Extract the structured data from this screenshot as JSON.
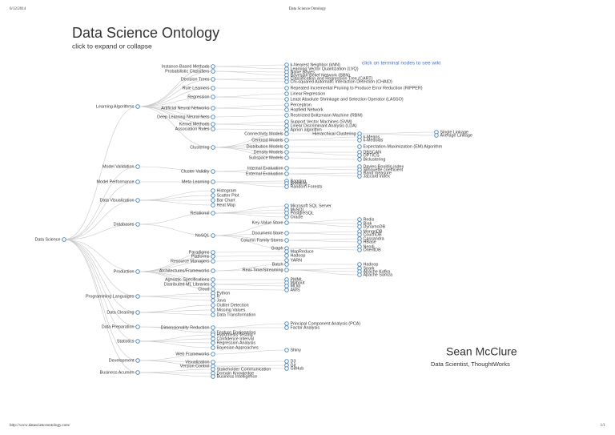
{
  "header": {
    "date": "6/12/2014",
    "title": "Data Science Ontology"
  },
  "title": "Data Science Ontology",
  "subtitle": "click to expand or collapse",
  "hint": "click on terminal nodes to see wiki",
  "author": {
    "name": "Sean McClure",
    "role": "Data Scientist, ThoughtWorks"
  },
  "footer": {
    "url": "http://www.datascienceontology.com/",
    "page": "1/1"
  },
  "tree": {
    "label": "Data Science",
    "children": [
      {
        "label": "Learning Algorithms",
        "children": [
          {
            "label": "Instance-Based Methods",
            "children": [
              {
                "label": "k-Nearest Neighbor (kNN)"
              },
              {
                "label": "Learning Vector Quantization (LVQ)"
              }
            ]
          },
          {
            "label": "Probabilistic Classifiers",
            "children": [
              {
                "label": "Naive Bayes"
              },
              {
                "label": "Bayesian Belief Network (BBN)"
              }
            ]
          },
          {
            "label": "Decision Trees",
            "children": [
              {
                "label": "Classification and Regression Tree (CART)"
              },
              {
                "label": "Chi-squared Automatic Interaction Detection (CHAID)"
              }
            ]
          },
          {
            "label": "Rule Learners",
            "children": [
              {
                "label": "Repeated Incremental Pruning to Produce Error Reduction (RIPPER)"
              }
            ]
          },
          {
            "label": "Regression",
            "children": [
              {
                "label": "Linear Regression"
              },
              {
                "label": "Least Absolute Shrinkage and Selection Operator (LASSO)"
              }
            ]
          },
          {
            "label": "Artificial Neural Networks",
            "children": [
              {
                "label": "Perceptron"
              },
              {
                "label": "Hopfield Network"
              }
            ]
          },
          {
            "label": "Deep Learning Neural Nets",
            "children": [
              {
                "label": "Restricted Boltzmann Machine (RBM)"
              }
            ]
          },
          {
            "label": "Kernel Methods",
            "children": [
              {
                "label": "Support Vector Machines (SVM)"
              },
              {
                "label": "Linear Discriminant Analysis (LDA)"
              }
            ]
          },
          {
            "label": "Association Rules",
            "children": [
              {
                "label": "Apriori algorithm"
              }
            ]
          },
          {
            "label": "Clustering",
            "children": [
              {
                "label": "Connectivity Models",
                "children": [
                  {
                    "label": "Hierarchical Clustering",
                    "children": [
                      {
                        "label": "Single Linkage"
                      },
                      {
                        "label": "Average Linkage"
                      }
                    ]
                  }
                ]
              },
              {
                "label": "Centroid Models",
                "children": [
                  {
                    "label": "k-Means"
                  },
                  {
                    "label": "k-Medoids"
                  }
                ]
              },
              {
                "label": "Distribution Models",
                "children": [
                  {
                    "label": "Expectation-Maximization (EM) Algorithm"
                  }
                ]
              },
              {
                "label": "Density Models",
                "children": [
                  {
                    "label": "DBSCAN"
                  },
                  {
                    "label": "OPTICS"
                  }
                ]
              },
              {
                "label": "Subspace Models",
                "children": [
                  {
                    "label": "Biclustering"
                  }
                ]
              }
            ]
          }
        ]
      },
      {
        "label": "Model Validation",
        "children": [
          {
            "label": "Cluster Validity",
            "children": [
              {
                "label": "Internal Evaluation",
                "children": [
                  {
                    "label": "Davies-Bouldin index"
                  },
                  {
                    "label": "Silhouette coefficient"
                  }
                ]
              },
              {
                "label": "External Evaluation",
                "children": [
                  {
                    "label": "Rand measure"
                  },
                  {
                    "label": "Jaccard index"
                  }
                ]
              }
            ]
          }
        ]
      },
      {
        "label": "Model Performance",
        "children": [
          {
            "label": "Meta Learning",
            "children": [
              {
                "label": "Bagging"
              },
              {
                "label": "Boosting"
              },
              {
                "label": "Random Forests"
              }
            ]
          }
        ]
      },
      {
        "label": "Data Visualization",
        "children": [
          {
            "label": "Histogram"
          },
          {
            "label": "Scatter Plot"
          },
          {
            "label": "Bar Chart"
          },
          {
            "label": "Heat Map"
          }
        ]
      },
      {
        "label": "Databases",
        "children": [
          {
            "label": "Relational",
            "children": [
              {
                "label": "Microsoft SQL Server"
              },
              {
                "label": "MySQL"
              },
              {
                "label": "PostgreSQL"
              },
              {
                "label": "Oracle"
              }
            ]
          },
          {
            "label": "NoSQL",
            "children": [
              {
                "label": "Key-Value Store",
                "children": [
                  {
                    "label": "Redis"
                  },
                  {
                    "label": "Riak"
                  },
                  {
                    "label": "DynamoDB"
                  }
                ]
              },
              {
                "label": "Document Store",
                "children": [
                  {
                    "label": "MongoDB"
                  },
                  {
                    "label": "CouchDB"
                  }
                ]
              },
              {
                "label": "Column Family Stores",
                "children": [
                  {
                    "label": "Cassandra"
                  },
                  {
                    "label": "HBase"
                  }
                ]
              },
              {
                "label": "Graph",
                "children": [
                  {
                    "label": "Neo4j"
                  },
                  {
                    "label": "OrientDB"
                  }
                ]
              }
            ]
          }
        ]
      },
      {
        "label": "Production",
        "children": [
          {
            "label": "Paradigms",
            "children": [
              {
                "label": "MapReduce"
              }
            ]
          },
          {
            "label": "Platforms",
            "children": [
              {
                "label": "Hadoop"
              }
            ]
          },
          {
            "label": "Resource Managers",
            "children": [
              {
                "label": "YARN"
              }
            ]
          },
          {
            "label": "Architectures/Frameworks",
            "children": [
              {
                "label": "Batch",
                "children": [
                  {
                    "label": "Hadoop"
                  }
                ]
              },
              {
                "label": "Real-Time/Streaming",
                "children": [
                  {
                    "label": "Spark"
                  },
                  {
                    "label": "Apache Kafka"
                  },
                  {
                    "label": "Apache Samza"
                  }
                ]
              }
            ]
          },
          {
            "label": "Agnostic Specifications",
            "children": [
              {
                "label": "PMML"
              }
            ]
          },
          {
            "label": "Distributed ML Libraries",
            "children": [
              {
                "label": "Mahout"
              },
              {
                "label": "MLlib"
              }
            ]
          },
          {
            "label": "Cloud",
            "children": [
              {
                "label": "AWS"
              }
            ]
          }
        ]
      },
      {
        "label": "Programming Languages",
        "children": [
          {
            "label": "Python"
          },
          {
            "label": "R"
          },
          {
            "label": "Java"
          }
        ]
      },
      {
        "label": "Data Cleaning",
        "children": [
          {
            "label": "Outlier Detection"
          },
          {
            "label": "Missing Values"
          },
          {
            "label": "Data Transformation"
          }
        ]
      },
      {
        "label": "Data Preparation",
        "children": [
          {
            "label": "Dimensionality Reduction",
            "children": [
              {
                "label": "Principal Component Analysis (PCA)"
              },
              {
                "label": "Factor Analysis"
              }
            ]
          },
          {
            "label": "Feature Engineering"
          }
        ]
      },
      {
        "label": "Statistics",
        "children": [
          {
            "label": "Hypothesis Testing"
          },
          {
            "label": "Confidence Interval"
          },
          {
            "label": "Regression Analysis"
          },
          {
            "label": "Bayesian Approaches"
          }
        ]
      },
      {
        "label": "Development",
        "children": [
          {
            "label": "Web Frameworks",
            "children": [
              {
                "label": "Shiny"
              }
            ]
          },
          {
            "label": "Visualization",
            "children": [
              {
                "label": "D3"
              }
            ]
          },
          {
            "label": "Version Control",
            "children": [
              {
                "label": "Git"
              },
              {
                "label": "GitHub"
              }
            ]
          }
        ]
      },
      {
        "label": "Business Acumen",
        "children": [
          {
            "label": "Stakeholder Communication"
          },
          {
            "label": "Domain Knowledge"
          },
          {
            "label": "Business Intelligence"
          }
        ]
      }
    ]
  }
}
